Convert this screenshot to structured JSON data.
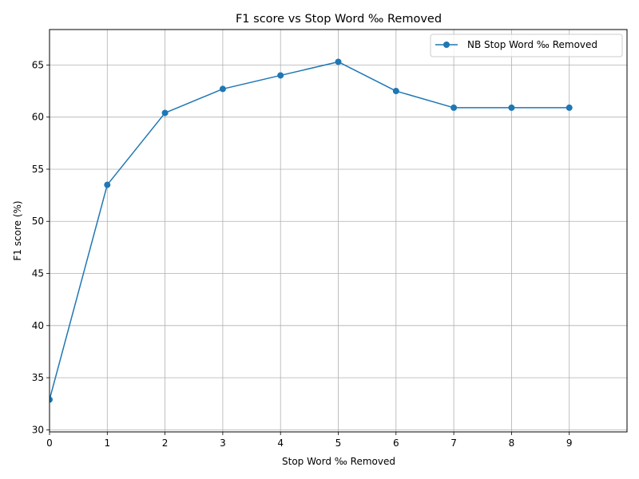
{
  "chart_data": {
    "type": "line",
    "title": "F1 score vs Stop Word ‰ Removed",
    "xlabel": "Stop Word ‰ Removed",
    "ylabel": "F1 score (%)",
    "xlim": [
      0,
      10
    ],
    "ylim": [
      29.8,
      68.4
    ],
    "xticks": [
      0,
      1,
      2,
      3,
      4,
      5,
      6,
      7,
      8,
      9
    ],
    "yticks": [
      30,
      35,
      40,
      45,
      50,
      55,
      60,
      65
    ],
    "grid": true,
    "legend_position": "top-right",
    "series": [
      {
        "name": "NB Stop Word ‰ Removed",
        "color": "#1f77b4",
        "marker": "circle",
        "x": [
          0,
          1,
          2,
          3,
          4,
          5,
          6,
          7,
          8,
          9
        ],
        "y": [
          32.9,
          53.5,
          60.4,
          62.7,
          64.0,
          65.3,
          62.5,
          60.9,
          60.9,
          60.9
        ]
      }
    ]
  }
}
